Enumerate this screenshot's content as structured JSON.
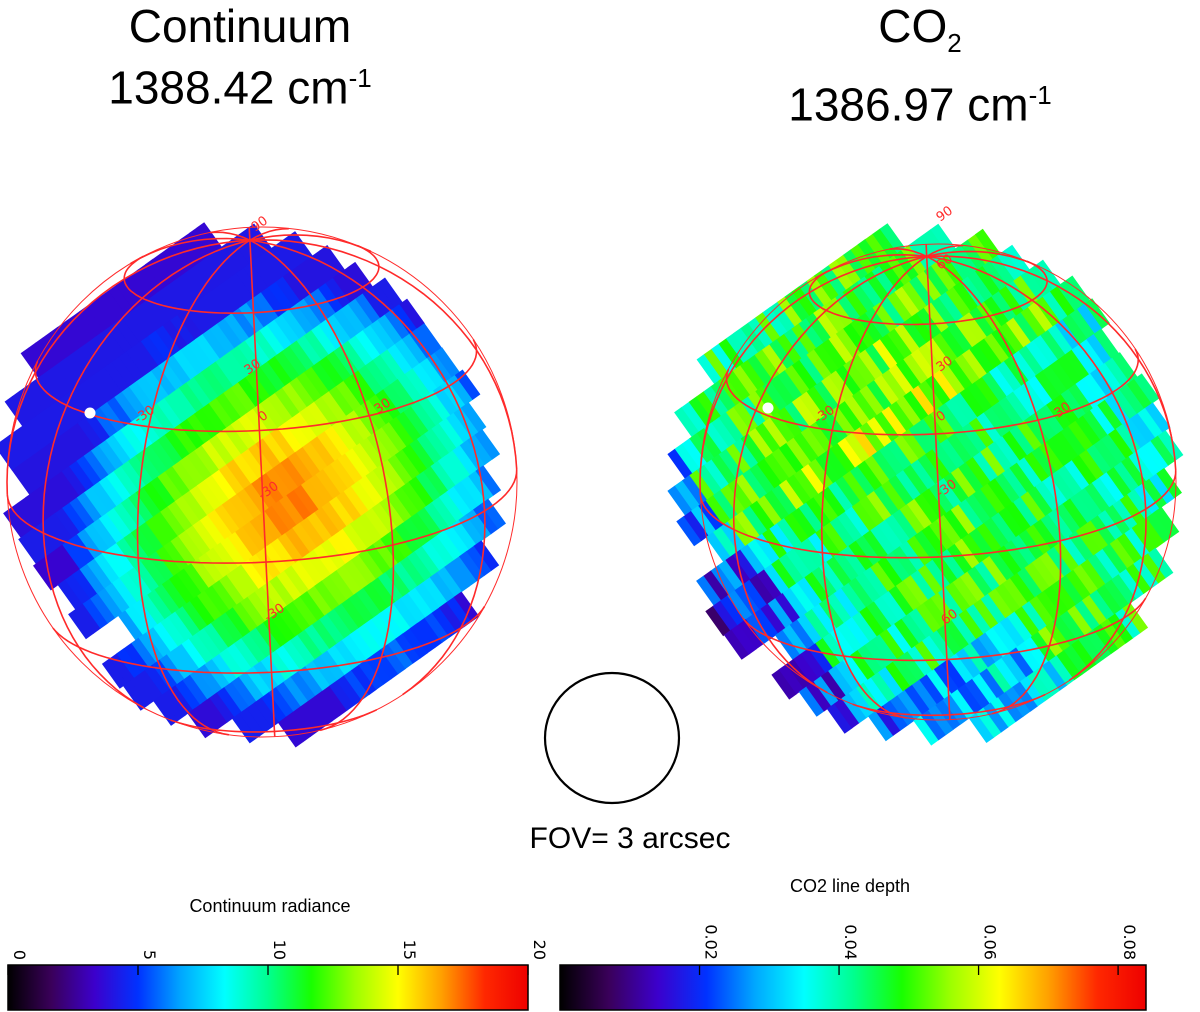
{
  "panels": [
    {
      "title_main": "Continuum",
      "title_wavenumber": "1388.42 cm",
      "title_unit_sup": "-1",
      "map_type": "continuum",
      "grid_labels": [
        "90",
        "30",
        "0",
        "-30",
        "30",
        "-30",
        "-30"
      ]
    },
    {
      "title_main": "CO",
      "title_sub": "2",
      "title_wavenumber": "1386.97 cm",
      "title_unit_sup": "-1",
      "map_type": "co2",
      "grid_labels": [
        "90",
        "60",
        "30",
        "0",
        "-30",
        "-30",
        "30",
        "60"
      ]
    }
  ],
  "fov": {
    "label": "FOV= 3 arcsec"
  },
  "colorbars": [
    {
      "label": "Continuum radiance",
      "min": 0,
      "max": 20,
      "ticks": [
        "0",
        "5",
        "10",
        "15",
        "20"
      ],
      "tick_values": [
        0,
        5,
        10,
        15,
        20
      ]
    },
    {
      "label": "CO2 line depth",
      "min": 0.0,
      "max": 0.084,
      "ticks": [
        "0.02",
        "0.04",
        "0.06",
        "0.08"
      ],
      "tick_values": [
        0.02,
        0.04,
        0.06,
        0.08
      ]
    }
  ],
  "colors": {
    "grid": "#ff2a2a",
    "marker": "#ffffff",
    "colormap": [
      "#000000",
      "#3a005a",
      "#3c00cc",
      "#0032ff",
      "#00a8ff",
      "#00ffff",
      "#00ff90",
      "#18ff00",
      "#9cff00",
      "#ffff00",
      "#ffa000",
      "#ff2800",
      "#ee0000"
    ]
  }
}
